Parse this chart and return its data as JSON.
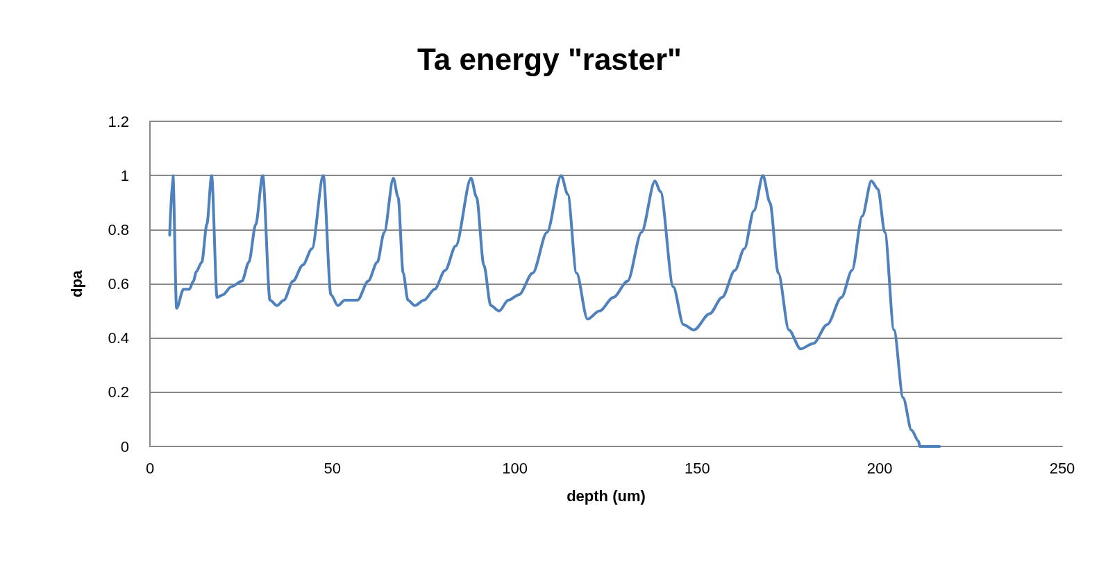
{
  "chart_data": {
    "type": "line",
    "title": "Ta energy \"raster\"",
    "xlabel": "depth (um)",
    "ylabel": "dpa",
    "xlim": [
      0,
      250
    ],
    "xticks": [
      0,
      50,
      100,
      150,
      200,
      250
    ],
    "ylim": [
      0,
      1.2
    ],
    "yticks": [
      0,
      0.2,
      0.4,
      0.6,
      0.8,
      1,
      1.2
    ],
    "grid": "y",
    "marker": "none",
    "line_style": "solid",
    "series": [
      {
        "color": "#4f81bd",
        "x": [
          5.4,
          6.3,
          7.3,
          9.2,
          10.8,
          11.9,
          12.7,
          14.2,
          15.6,
          16.9,
          18.4,
          20,
          22.3,
          25.2,
          27.1,
          29,
          30.9,
          32.9,
          34.8,
          36.7,
          39.2,
          41.9,
          44.4,
          47.5,
          49.6,
          51.5,
          53.4,
          56.9,
          59.8,
          62.3,
          64.2,
          66.7,
          68,
          69.4,
          70.7,
          72.6,
          75.1,
          78,
          80.9,
          83.8,
          88,
          89.5,
          91.5,
          93.4,
          95.7,
          98.2,
          101.1,
          104.9,
          108.8,
          112.7,
          114.5,
          116.9,
          119.9,
          123.2,
          127,
          130.9,
          134.7,
          138.4,
          139.9,
          143.4,
          146.2,
          149.1,
          153.4,
          156.8,
          160.3,
          162.9,
          165.5,
          168,
          169.9,
          172.2,
          175.1,
          178.3,
          181.8,
          185.6,
          189.5,
          192.4,
          195.2,
          197.7,
          199.5,
          201.4,
          203.9,
          206.4,
          208.7,
          210.6,
          211,
          216.4
        ],
        "values": [
          0.78,
          1.0,
          0.51,
          0.58,
          0.58,
          0.61,
          0.645,
          0.68,
          0.82,
          1.0,
          0.55,
          0.56,
          0.59,
          0.61,
          0.68,
          0.82,
          1.0,
          0.54,
          0.52,
          0.54,
          0.61,
          0.67,
          0.73,
          1.0,
          0.56,
          0.52,
          0.54,
          0.54,
          0.61,
          0.68,
          0.79,
          0.99,
          0.92,
          0.64,
          0.54,
          0.52,
          0.54,
          0.58,
          0.65,
          0.74,
          0.99,
          0.92,
          0.67,
          0.52,
          0.5,
          0.54,
          0.56,
          0.64,
          0.79,
          1.0,
          0.93,
          0.64,
          0.47,
          0.5,
          0.55,
          0.61,
          0.79,
          0.98,
          0.94,
          0.59,
          0.45,
          0.43,
          0.49,
          0.55,
          0.65,
          0.73,
          0.87,
          1.0,
          0.9,
          0.64,
          0.43,
          0.36,
          0.38,
          0.45,
          0.55,
          0.65,
          0.85,
          0.98,
          0.95,
          0.79,
          0.43,
          0.18,
          0.06,
          0.02,
          0,
          0
        ]
      }
    ]
  }
}
